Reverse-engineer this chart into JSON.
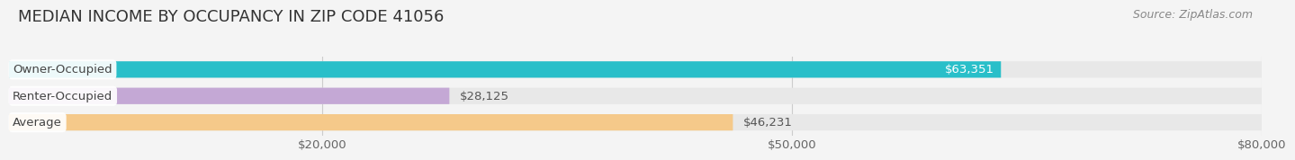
{
  "title": "MEDIAN INCOME BY OCCUPANCY IN ZIP CODE 41056",
  "source": "Source: ZipAtlas.com",
  "categories": [
    "Owner-Occupied",
    "Renter-Occupied",
    "Average"
  ],
  "values": [
    63351,
    28125,
    46231
  ],
  "bar_colors": [
    "#29bfc9",
    "#c4a8d5",
    "#f5c98a"
  ],
  "bar_labels": [
    "$63,351",
    "$28,125",
    "$46,231"
  ],
  "xlim": [
    0,
    80000
  ],
  "xticks": [
    20000,
    50000,
    80000
  ],
  "xtick_labels": [
    "$20,000",
    "$50,000",
    "$80,000"
  ],
  "background_color": "#f4f4f4",
  "bar_background_color": "#e8e8e8",
  "title_fontsize": 13,
  "source_fontsize": 9,
  "label_fontsize": 9.5,
  "value_label_fontsize": 9.5,
  "bar_height": 0.62,
  "grid_color": "#cccccc",
  "cat_label_color": "#444444",
  "value_label_color_inside": "#ffffff",
  "value_label_color_outside": "#555555"
}
